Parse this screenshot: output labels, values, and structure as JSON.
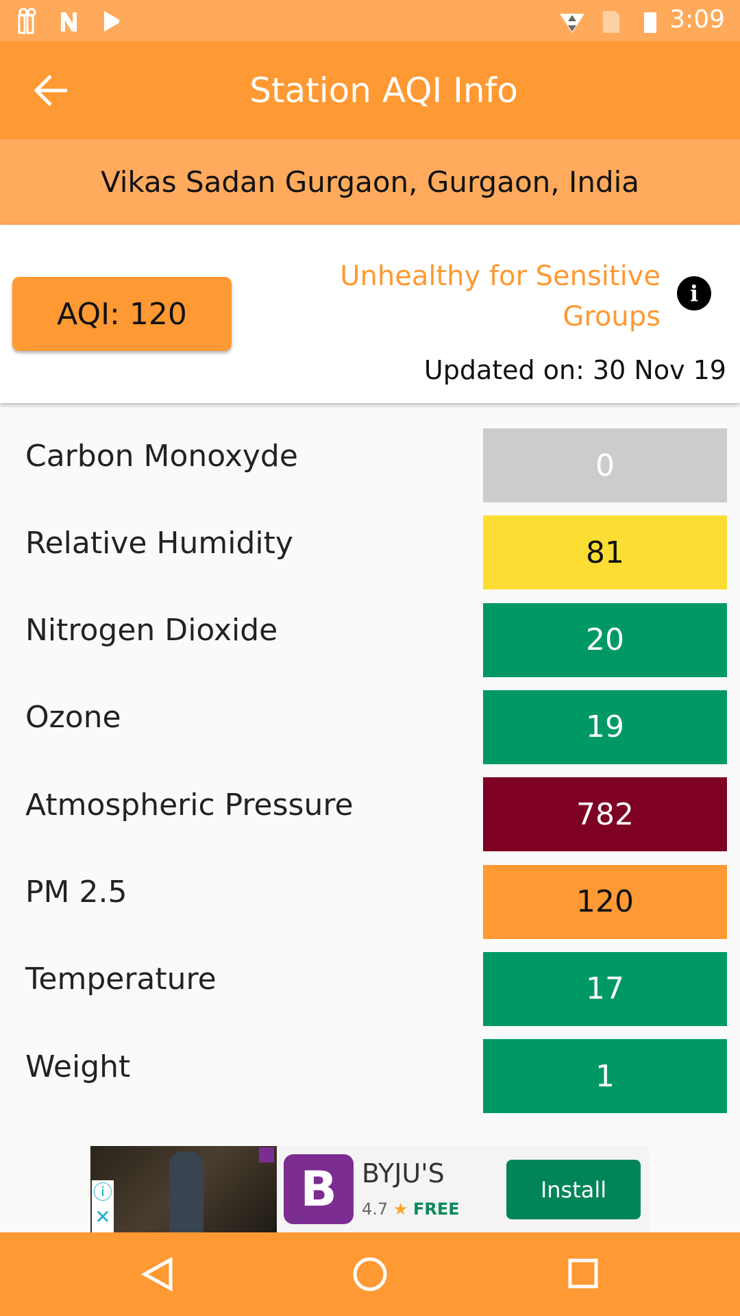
{
  "status_bar": {
    "time": "3:09",
    "icons": [
      "aqi-app-icon",
      "n-icon",
      "play-store-icon",
      "wifi-icon",
      "no-sim-icon",
      "battery-charging-icon"
    ]
  },
  "toolbar": {
    "title": "Station AQI Info",
    "back_icon": "arrow-left-icon"
  },
  "station": {
    "location": "Vikas Sadan Gurgaon, Gurgaon, India"
  },
  "summary": {
    "aqi_label": "AQI: 120",
    "category": "Unhealthy for Sensitive Groups",
    "category_color": "#FF9933",
    "updated": "Updated on: 30 Nov 19"
  },
  "readings": [
    {
      "label": "Carbon Monoxyde",
      "value": "0",
      "color": "#CCCCCC",
      "text_color": "#FFFFFF"
    },
    {
      "label": "Relative Humidity",
      "value": "81",
      "color": "#FCDD33",
      "text_color": "#111111"
    },
    {
      "label": "Nitrogen Dioxide",
      "value": "20",
      "color": "#009966",
      "text_color": "#FFFFFF"
    },
    {
      "label": "Ozone",
      "value": "19",
      "color": "#009966",
      "text_color": "#FFFFFF"
    },
    {
      "label": "Atmospheric Pressure",
      "value": "782",
      "color": "#7E0023",
      "text_color": "#FFFFFF"
    },
    {
      "label": "PM 2.5",
      "value": "120",
      "color": "#FF9933",
      "text_color": "#111111"
    },
    {
      "label": "Temperature",
      "value": "17",
      "color": "#009966",
      "text_color": "#FFFFFF"
    },
    {
      "label": "Weight",
      "value": "1",
      "color": "#009966",
      "text_color": "#FFFFFF"
    }
  ],
  "ad": {
    "app_name": "BYJU'S",
    "rating": "4.7",
    "price": "FREE",
    "cta": "Install"
  }
}
